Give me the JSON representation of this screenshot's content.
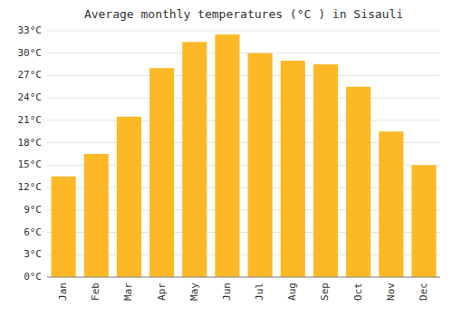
{
  "chart_data": {
    "type": "bar",
    "title": "Average monthly temperatures (°C ) in Sisauli",
    "categories": [
      "Jan",
      "Feb",
      "Mar",
      "Apr",
      "May",
      "Jun",
      "Jul",
      "Aug",
      "Sep",
      "Oct",
      "Nov",
      "Dec"
    ],
    "values": [
      13.5,
      16.5,
      21.5,
      28.0,
      31.5,
      32.5,
      30.0,
      29.0,
      28.5,
      25.5,
      19.5,
      15.0
    ],
    "color": "#FDB827",
    "ylim": [
      0,
      33
    ],
    "yticks": [
      {
        "value": 0,
        "label": "0°C"
      },
      {
        "value": 3,
        "label": "3°C"
      },
      {
        "value": 6,
        "label": "6°C"
      },
      {
        "value": 9,
        "label": "9°C"
      },
      {
        "value": 12,
        "label": "12°C"
      },
      {
        "value": 15,
        "label": "15°C"
      },
      {
        "value": 18,
        "label": "18°C"
      },
      {
        "value": 21,
        "label": "21°C"
      },
      {
        "value": 24,
        "label": "24°C"
      },
      {
        "value": 27,
        "label": "27°C"
      },
      {
        "value": 30,
        "label": "30°C"
      },
      {
        "value": 33,
        "label": "33°C"
      }
    ],
    "grid": true
  }
}
